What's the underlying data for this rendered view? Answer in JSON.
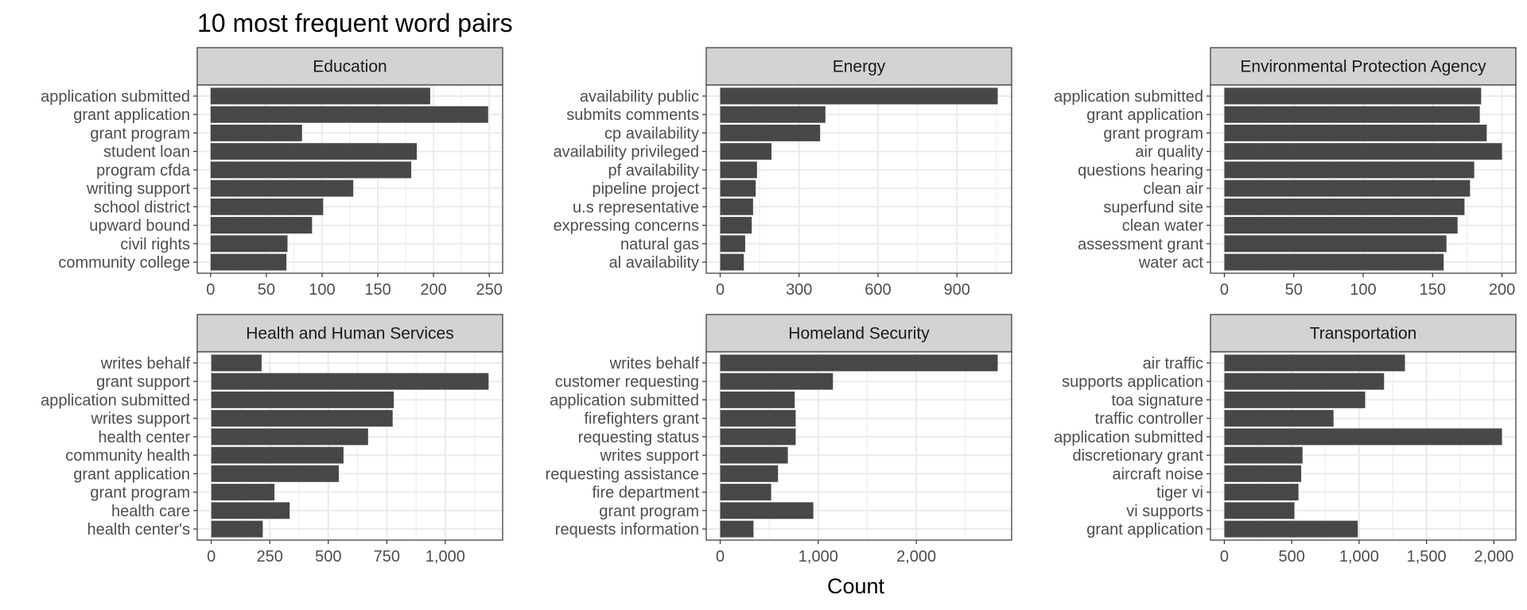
{
  "title": "10 most frequent word pairs",
  "xlabel": "Count",
  "colors": {
    "bar": "#474747",
    "strip_bg": "#d3d3d3",
    "grid": "#ebebeb",
    "frame": "#333333"
  },
  "chart_data": [
    {
      "type": "bar",
      "orientation": "horizontal",
      "panel": "Education",
      "categories": [
        "application submitted",
        "grant application",
        "grant program",
        "student loan",
        "program cfda",
        "writing support",
        "school district",
        "upward bound",
        "civil rights",
        "community college"
      ],
      "values": [
        197,
        249,
        82,
        185,
        180,
        128,
        101,
        91,
        69,
        68
      ],
      "xlim": [
        -12,
        262
      ],
      "ticks": [
        0,
        50,
        100,
        150,
        200,
        250
      ],
      "tick_labels": [
        "0",
        "50",
        "100",
        "150",
        "200",
        "250"
      ]
    },
    {
      "type": "bar",
      "orientation": "horizontal",
      "panel": "Energy",
      "categories": [
        "availability public",
        "submits comments",
        "cp availability",
        "availability privileged",
        "pf availability",
        "pipeline project",
        "u.s representative",
        "expressing concerns",
        "natural gas",
        "al availability"
      ],
      "values": [
        1055,
        400,
        380,
        195,
        140,
        135,
        125,
        120,
        95,
        90
      ],
      "xlim": [
        -53,
        1108
      ],
      "ticks": [
        0,
        300,
        600,
        900
      ],
      "tick_labels": [
        "0",
        "300",
        "600",
        "900"
      ]
    },
    {
      "type": "bar",
      "orientation": "horizontal",
      "panel": "Environmental Protection Agency",
      "categories": [
        "application submitted",
        "grant application",
        "grant program",
        "air quality",
        "questions hearing",
        "clean air",
        "superfund site",
        "clean water",
        "assessment grant",
        "water act"
      ],
      "values": [
        185,
        184,
        189,
        200,
        180,
        177,
        173,
        168,
        160,
        158
      ],
      "xlim": [
        -10,
        210
      ],
      "ticks": [
        0,
        50,
        100,
        150,
        200
      ],
      "tick_labels": [
        "0",
        "50",
        "100",
        "150",
        "200"
      ]
    },
    {
      "type": "bar",
      "orientation": "horizontal",
      "panel": "Health and Human Services",
      "categories": [
        "writes behalf",
        "grant support",
        "application submitted",
        "writes support",
        "health center",
        "community health",
        "grant application",
        "grant program",
        "health care",
        "health center's"
      ],
      "values": [
        215,
        1185,
        780,
        775,
        670,
        565,
        545,
        270,
        335,
        220
      ],
      "xlim": [
        -60,
        1245
      ],
      "ticks": [
        0,
        250,
        500,
        750,
        1000
      ],
      "tick_labels": [
        "0",
        "250",
        "500",
        "750",
        "1,000"
      ]
    },
    {
      "type": "bar",
      "orientation": "horizontal",
      "panel": "Homeland Security",
      "categories": [
        "writes behalf",
        "customer requesting",
        "application submitted",
        "firefighters grant",
        "requesting status",
        "writes support",
        "requesting assistance",
        "fire department",
        "grant program",
        "requests information"
      ],
      "values": [
        2830,
        1150,
        760,
        770,
        770,
        690,
        590,
        520,
        950,
        340
      ],
      "xlim": [
        -142,
        2972
      ],
      "ticks": [
        0,
        1000,
        2000
      ],
      "tick_labels": [
        "0",
        "1,000",
        "2,000"
      ]
    },
    {
      "type": "bar",
      "orientation": "horizontal",
      "panel": "Transportation",
      "categories": [
        "air traffic",
        "supports application",
        "toa signature",
        "traffic controller",
        "application submitted",
        "discretionary grant",
        "aircraft noise",
        "tiger vi",
        "vi supports",
        "grant application"
      ],
      "values": [
        1340,
        1185,
        1045,
        810,
        2060,
        580,
        570,
        550,
        520,
        990
      ],
      "xlim": [
        -103,
        2163
      ],
      "ticks": [
        0,
        500,
        1000,
        1500,
        2000
      ],
      "tick_labels": [
        "0",
        "500",
        "1,000",
        "1,500",
        "2,000"
      ]
    }
  ]
}
